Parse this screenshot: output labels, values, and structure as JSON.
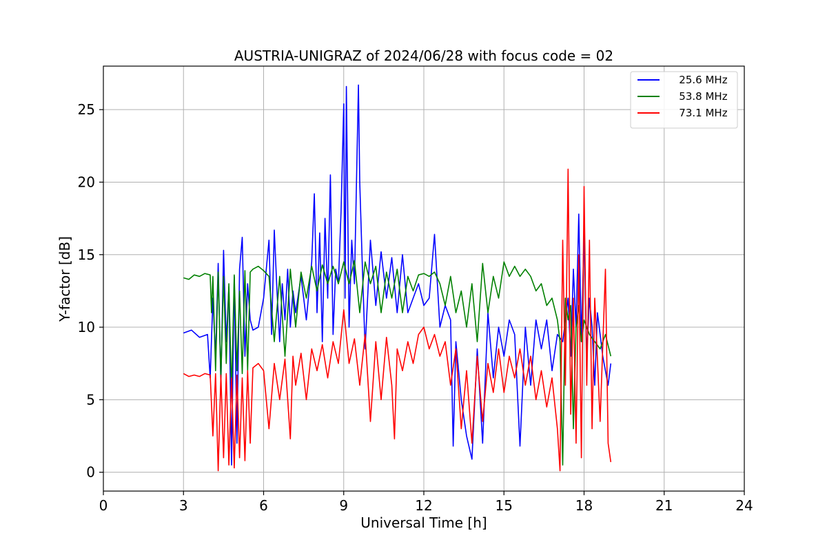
{
  "chart_data": {
    "type": "line",
    "title": "AUSTRIA-UNIGRAZ of 2024/06/28 with focus code = 02",
    "xlabel": "Universal Time [h]",
    "ylabel": "Y-factor [dB]",
    "xlim": [
      0,
      24
    ],
    "ylim": [
      -1.3,
      28
    ],
    "xticks": [
      0,
      3,
      6,
      9,
      12,
      15,
      18,
      21,
      24
    ],
    "yticks": [
      0,
      5,
      10,
      15,
      20,
      25
    ],
    "grid": true,
    "legend_position": "top-right",
    "series": [
      {
        "name": "   25.6 MHz",
        "color": "#0000ff",
        "x": [
          3.0,
          3.3,
          3.6,
          3.9,
          4.0,
          4.1,
          4.2,
          4.3,
          4.4,
          4.5,
          4.6,
          4.7,
          4.8,
          4.9,
          5.0,
          5.1,
          5.2,
          5.3,
          5.4,
          5.5,
          5.6,
          5.8,
          6.0,
          6.2,
          6.3,
          6.4,
          6.5,
          6.6,
          6.7,
          6.8,
          6.9,
          7.0,
          7.1,
          7.2,
          7.4,
          7.6,
          7.8,
          7.9,
          8.0,
          8.1,
          8.2,
          8.3,
          8.4,
          8.5,
          8.6,
          8.7,
          8.8,
          8.9,
          9.0,
          9.05,
          9.1,
          9.2,
          9.3,
          9.4,
          9.5,
          9.55,
          9.6,
          9.7,
          9.8,
          10.0,
          10.2,
          10.4,
          10.6,
          10.8,
          11.0,
          11.2,
          11.4,
          11.6,
          11.8,
          12.0,
          12.2,
          12.4,
          12.6,
          12.8,
          13.0,
          13.1,
          13.2,
          13.4,
          13.6,
          13.8,
          14.0,
          14.2,
          14.4,
          14.6,
          14.8,
          15.0,
          15.2,
          15.4,
          15.6,
          15.8,
          16.0,
          16.2,
          16.4,
          16.6,
          16.8,
          17.0,
          17.2,
          17.4,
          17.5,
          17.6,
          17.7,
          17.8,
          17.9,
          18.0,
          18.1,
          18.2,
          18.3,
          18.4,
          18.5,
          18.6,
          18.7,
          18.8,
          18.9,
          19.0
        ],
        "y": [
          9.6,
          9.8,
          9.3,
          9.5,
          6.5,
          12.0,
          8.0,
          14.4,
          6.0,
          15.3,
          9.0,
          12.8,
          0.5,
          13.5,
          2.0,
          14.0,
          16.2,
          8.0,
          13.0,
          10.5,
          9.8,
          10.0,
          12.0,
          16.0,
          9.5,
          16.7,
          12.5,
          9.0,
          13.0,
          10.5,
          14.0,
          10.0,
          12.5,
          11.0,
          13.5,
          10.5,
          14.5,
          19.2,
          11.0,
          16.5,
          9.0,
          17.5,
          12.0,
          20.5,
          9.5,
          14.0,
          13.0,
          18.0,
          25.4,
          12.0,
          26.6,
          10.0,
          16.0,
          13.0,
          22.0,
          26.7,
          20.0,
          14.0,
          8.5,
          16.0,
          11.5,
          15.2,
          12.0,
          14.8,
          11.0,
          15.0,
          11.0,
          12.0,
          13.0,
          11.5,
          12.0,
          16.4,
          10.0,
          11.5,
          10.5,
          1.8,
          9.0,
          5.0,
          2.5,
          0.9,
          8.5,
          2.0,
          11.0,
          6.5,
          10.0,
          8.0,
          10.5,
          9.5,
          1.8,
          10.0,
          6.0,
          10.5,
          8.5,
          10.5,
          7.0,
          9.5,
          9.0,
          12.0,
          8.0,
          14.0,
          10.0,
          17.8,
          9.0,
          16.5,
          8.0,
          12.0,
          10.0,
          6.0,
          11.0,
          9.5,
          8.0,
          7.0,
          6.0,
          7.5
        ]
      },
      {
        "name": "   53.8 MHz",
        "color": "#008000",
        "x": [
          3.0,
          3.2,
          3.4,
          3.6,
          3.8,
          4.0,
          4.05,
          4.1,
          4.2,
          4.3,
          4.4,
          4.5,
          4.6,
          4.7,
          4.8,
          4.9,
          5.0,
          5.1,
          5.2,
          5.3,
          5.4,
          5.5,
          5.6,
          5.8,
          6.0,
          6.2,
          6.4,
          6.6,
          6.8,
          7.0,
          7.2,
          7.4,
          7.6,
          7.8,
          8.0,
          8.2,
          8.4,
          8.6,
          8.8,
          9.0,
          9.2,
          9.4,
          9.6,
          9.8,
          10.0,
          10.2,
          10.4,
          10.6,
          10.8,
          11.0,
          11.2,
          11.4,
          11.6,
          11.8,
          12.0,
          12.2,
          12.4,
          12.6,
          12.8,
          13.0,
          13.2,
          13.4,
          13.6,
          13.8,
          14.0,
          14.2,
          14.4,
          14.6,
          14.8,
          15.0,
          15.2,
          15.4,
          15.6,
          15.8,
          16.0,
          16.2,
          16.4,
          16.6,
          16.8,
          17.0,
          17.1,
          17.2,
          17.3,
          17.4,
          17.5,
          17.6,
          17.7,
          17.8,
          17.9,
          18.0,
          18.2,
          18.4,
          18.6,
          18.8,
          19.0
        ],
        "y": [
          13.4,
          13.3,
          13.6,
          13.5,
          13.7,
          13.6,
          11.0,
          13.5,
          7.0,
          13.8,
          6.5,
          13.5,
          7.5,
          13.0,
          5.5,
          13.6,
          7.0,
          12.5,
          6.8,
          13.9,
          7.0,
          13.8,
          14.0,
          14.2,
          13.9,
          13.5,
          9.0,
          13.5,
          8.0,
          14.0,
          10.0,
          13.8,
          12.0,
          14.2,
          12.5,
          14.3,
          13.0,
          14.2,
          13.0,
          14.5,
          13.0,
          14.6,
          11.0,
          14.5,
          13.0,
          14.2,
          11.0,
          13.8,
          12.0,
          14.0,
          11.0,
          13.5,
          12.5,
          13.6,
          13.7,
          13.5,
          13.8,
          13.0,
          11.5,
          13.5,
          11.0,
          12.5,
          10.0,
          13.0,
          9.0,
          14.4,
          11.0,
          13.5,
          12.0,
          14.5,
          13.5,
          14.2,
          13.5,
          14.0,
          13.5,
          12.5,
          13.0,
          11.5,
          12.0,
          10.5,
          9.0,
          0.5,
          12.0,
          10.5,
          11.5,
          3.0,
          10.0,
          11.5,
          9.0,
          10.5,
          9.5,
          9.0,
          8.5,
          9.5,
          8.0
        ]
      },
      {
        "name": "   73.1 MHz",
        "color": "#ff0000",
        "x": [
          3.0,
          3.2,
          3.4,
          3.6,
          3.8,
          4.0,
          4.1,
          4.2,
          4.3,
          4.4,
          4.5,
          4.6,
          4.7,
          4.8,
          4.9,
          5.0,
          5.1,
          5.2,
          5.3,
          5.4,
          5.5,
          5.6,
          5.8,
          6.0,
          6.2,
          6.4,
          6.6,
          6.8,
          7.0,
          7.1,
          7.2,
          7.4,
          7.6,
          7.8,
          8.0,
          8.2,
          8.4,
          8.6,
          8.8,
          9.0,
          9.2,
          9.4,
          9.6,
          9.8,
          10.0,
          10.2,
          10.4,
          10.6,
          10.8,
          10.9,
          11.0,
          11.2,
          11.4,
          11.6,
          11.8,
          12.0,
          12.2,
          12.4,
          12.6,
          12.8,
          13.0,
          13.2,
          13.4,
          13.6,
          13.8,
          14.0,
          14.2,
          14.4,
          14.6,
          14.8,
          15.0,
          15.2,
          15.4,
          15.6,
          15.8,
          16.0,
          16.2,
          16.4,
          16.6,
          16.8,
          17.0,
          17.1,
          17.2,
          17.3,
          17.4,
          17.5,
          17.6,
          17.7,
          17.8,
          17.9,
          18.0,
          18.1,
          18.2,
          18.3,
          18.4,
          18.6,
          18.8,
          18.9,
          19.0
        ],
        "y": [
          6.8,
          6.6,
          6.7,
          6.6,
          6.8,
          6.7,
          2.5,
          6.8,
          0.1,
          6.7,
          1.0,
          6.8,
          0.5,
          6.5,
          0.3,
          6.7,
          1.0,
          6.5,
          0.8,
          7.0,
          2.0,
          7.2,
          7.5,
          7.0,
          3.0,
          7.5,
          5.0,
          7.8,
          2.3,
          8.0,
          6.0,
          8.2,
          5.0,
          8.5,
          7.0,
          8.8,
          6.5,
          9.0,
          7.5,
          11.2,
          7.5,
          9.2,
          6.0,
          9.5,
          3.5,
          9.0,
          5.0,
          9.3,
          6.0,
          2.3,
          8.5,
          7.0,
          9.0,
          7.5,
          9.5,
          10.0,
          8.5,
          9.5,
          8.0,
          9.0,
          6.0,
          8.5,
          3.0,
          7.0,
          2.0,
          8.0,
          3.5,
          7.5,
          5.5,
          8.5,
          5.5,
          8.0,
          6.5,
          8.5,
          6.0,
          8.0,
          5.0,
          7.0,
          4.5,
          6.5,
          3.0,
          0.1,
          16.0,
          6.0,
          20.9,
          4.0,
          12.0,
          2.0,
          15.0,
          1.0,
          19.7,
          6.0,
          16.0,
          3.0,
          12.0,
          3.5,
          14.0,
          2.0,
          0.7
        ]
      }
    ]
  }
}
